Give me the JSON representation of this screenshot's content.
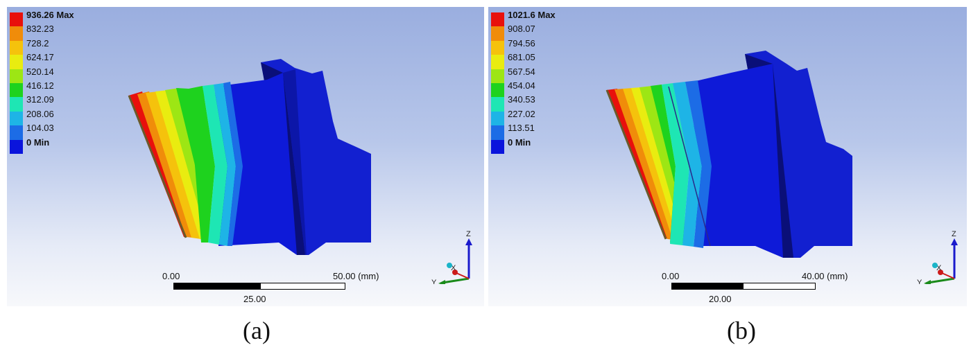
{
  "panels": [
    {
      "id": "a",
      "caption": "(a)",
      "legend": {
        "labels": [
          "936.26 Max",
          "832.23",
          "728.2",
          "624.17",
          "520.14",
          "416.12",
          "312.09",
          "208.06",
          "104.03",
          "0 Min"
        ],
        "colors": [
          "#e8100c",
          "#f08c0a",
          "#f5c20c",
          "#e9ec10",
          "#9de614",
          "#1ed21e",
          "#1ee6b4",
          "#1eb4e6",
          "#1c6ce6",
          "#0a14dc"
        ]
      },
      "scale": {
        "left": "0.00",
        "right": "50.00 (mm)",
        "mid": "25.00"
      },
      "triad": {
        "z": "Z",
        "y": "Y",
        "x": "X"
      }
    },
    {
      "id": "b",
      "caption": "(b)",
      "legend": {
        "labels": [
          "1021.6 Max",
          "908.07",
          "794.56",
          "681.05",
          "567.54",
          "454.04",
          "340.53",
          "227.02",
          "113.51",
          "0 Min"
        ],
        "colors": [
          "#e8100c",
          "#f08c0a",
          "#f5c20c",
          "#e9ec10",
          "#9de614",
          "#1ed21e",
          "#1ee6b4",
          "#1eb4e6",
          "#1c6ce6",
          "#0a14dc"
        ]
      },
      "scale": {
        "left": "0.00",
        "right": "40.00 (mm)",
        "mid": "20.00"
      },
      "triad": {
        "z": "Z",
        "y": "Y",
        "x": "X"
      }
    }
  ]
}
